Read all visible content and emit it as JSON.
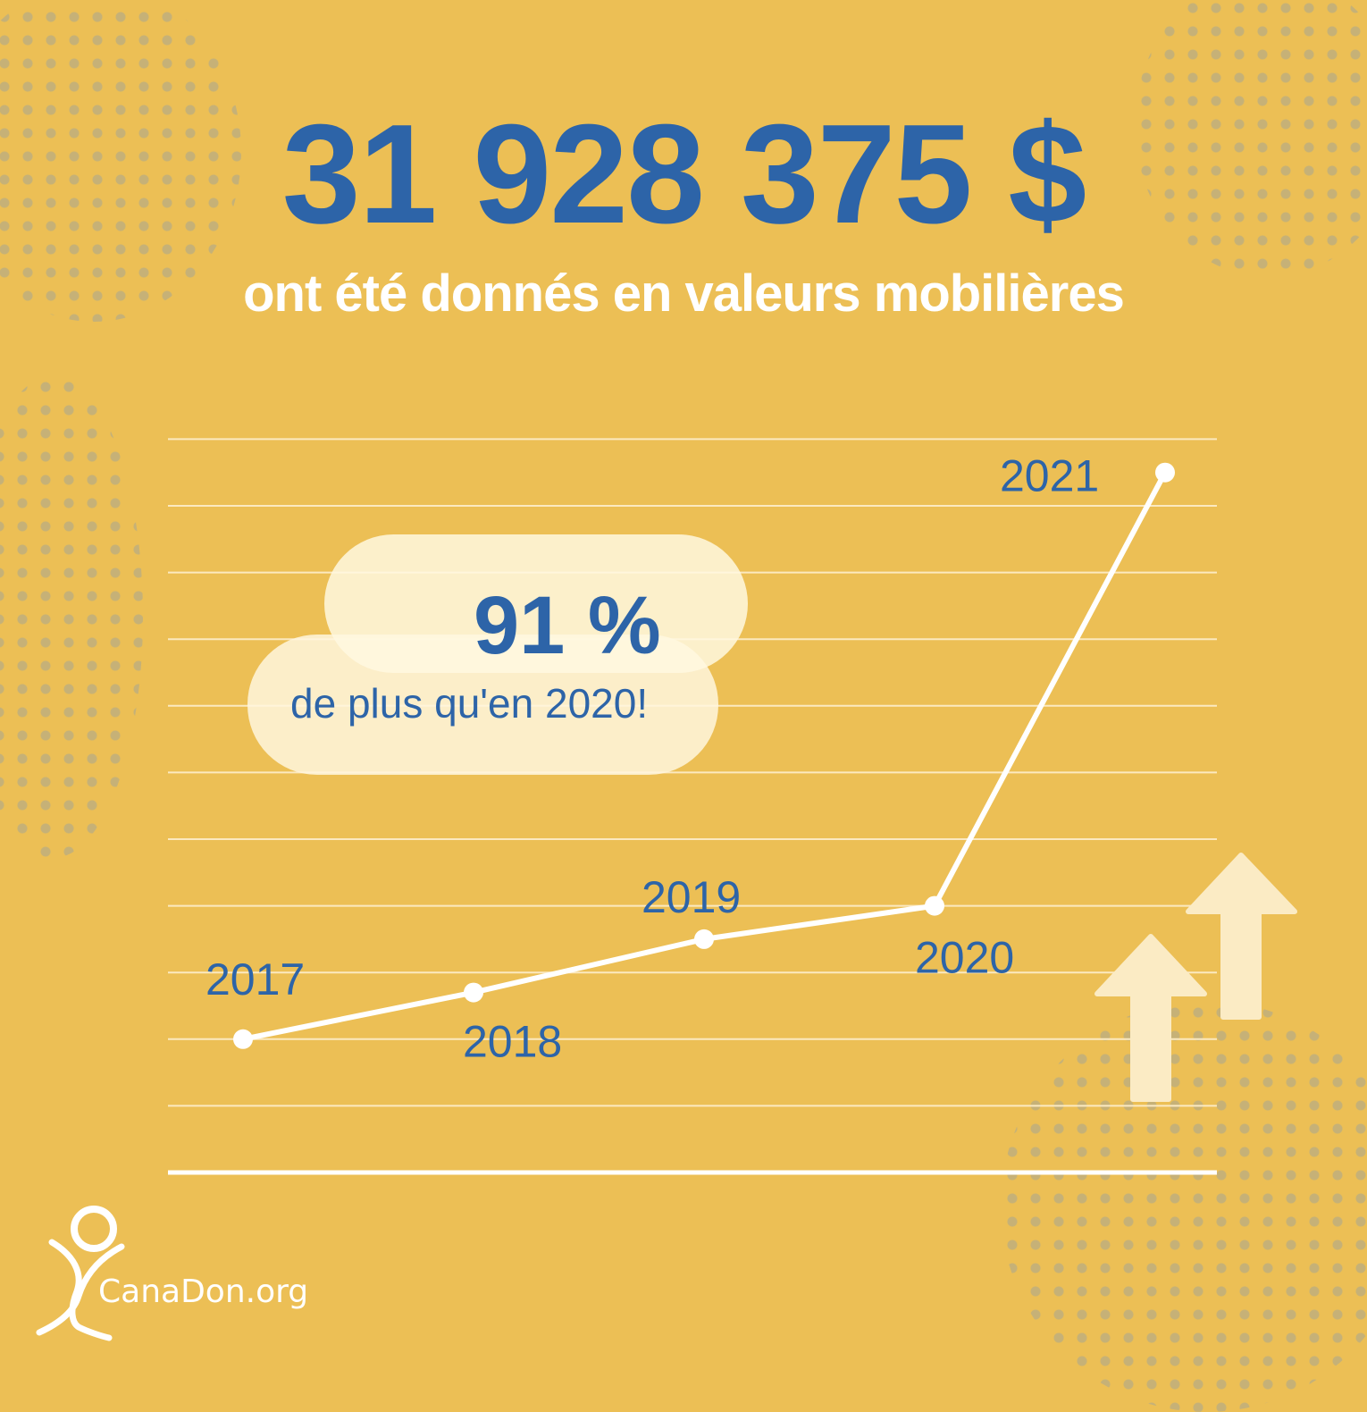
{
  "headline": "31 928 375 $",
  "subheadline": "ont été donnés en valeurs mobilières",
  "callout": {
    "value": "91 %",
    "text": "de plus qu'en 2020!"
  },
  "logo": {
    "text": "CanaDon.org"
  },
  "colors": {
    "background": "#ECBF55",
    "accent": "#2D64A8",
    "line": "#FFFFFF",
    "bubble": "#FFF6DE"
  },
  "decorations": {
    "icons": [
      "up-arrow-icon",
      "up-arrow-icon",
      "stick-figure-logo-icon"
    ]
  },
  "chart_data": {
    "type": "line",
    "categories": [
      "2017",
      "2018",
      "2019",
      "2020",
      "2021"
    ],
    "values": [
      2.0,
      2.7,
      3.5,
      4.0,
      10.5
    ],
    "title": "",
    "xlabel": "",
    "ylabel": "",
    "ylim": [
      0,
      11
    ],
    "grid": true,
    "axis_tick_labels": false,
    "legend": "none"
  }
}
